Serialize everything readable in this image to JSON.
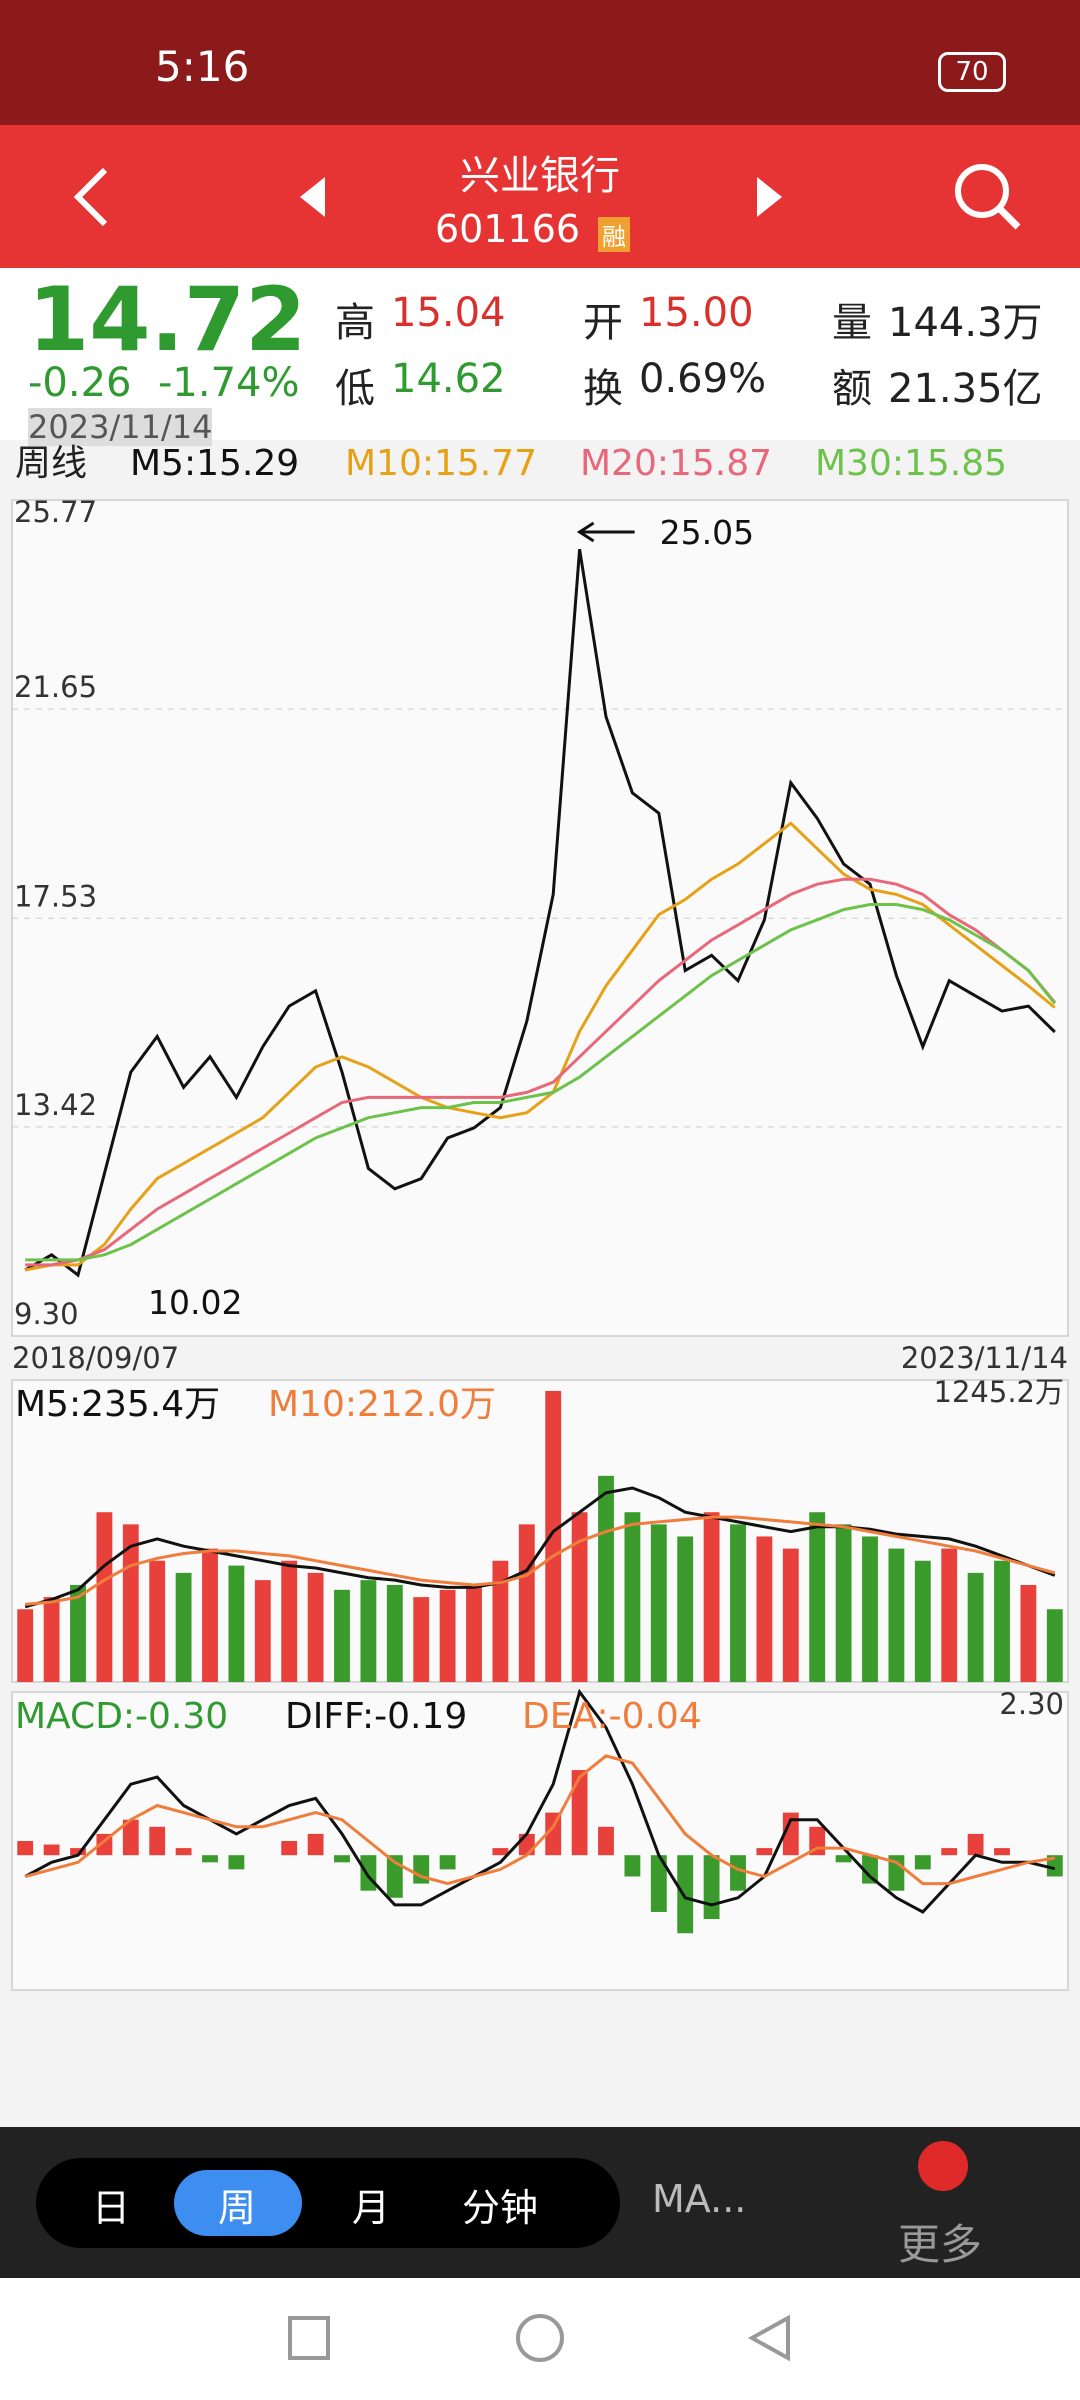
{
  "status_bar": {
    "time": "5:16",
    "battery": "70"
  },
  "header": {
    "name": "兴业银行",
    "code": "601166",
    "badge": "融"
  },
  "quote": {
    "price": "14.72",
    "change": "-0.26",
    "change_pct": "-1.74%",
    "date": "2023/11/14",
    "stats": [
      {
        "label": "高",
        "value": "15.04"
      },
      {
        "label": "开",
        "value": "15.00"
      },
      {
        "label": "量",
        "value": "144.3万"
      },
      {
        "label": "低",
        "value": "14.62"
      },
      {
        "label": "换",
        "value": "0.69%"
      },
      {
        "label": "额",
        "value": "21.35亿"
      }
    ]
  },
  "chart_data": [
    {
      "type": "line",
      "period": "周线",
      "max_label": "25.05",
      "min_label": "10.02",
      "categories": [
        "2018/09/07",
        null,
        null,
        null,
        null,
        null,
        null,
        null,
        null,
        null,
        null,
        null,
        null,
        null,
        null,
        null,
        null,
        null,
        null,
        null,
        null,
        null,
        null,
        null,
        null,
        null,
        null,
        null,
        null,
        null,
        null,
        null,
        null,
        null,
        null,
        null,
        null,
        null,
        null,
        "2023/11/14"
      ],
      "ylim": [
        9.3,
        25.77
      ],
      "yticks": [
        25.77,
        21.65,
        17.53,
        13.42,
        {
          "value": 9.3,
          "label": "9.30"
        }
      ],
      "grid": true,
      "series": [
        {
          "name": "M5:15.29",
          "color": "#111111",
          "values": [
            10.6,
            10.9,
            10.5,
            12.5,
            14.5,
            15.2,
            14.2,
            14.8,
            14.0,
            15.0,
            15.8,
            16.1,
            14.5,
            12.6,
            12.2,
            12.4,
            13.2,
            13.4,
            13.8,
            15.5,
            18.0,
            24.8,
            21.5,
            20.0,
            19.6,
            16.5,
            16.8,
            16.3,
            17.5,
            20.2,
            19.5,
            18.6,
            18.2,
            16.4,
            15.0,
            16.3,
            16.0,
            15.7,
            15.8,
            15.29
          ]
        },
        {
          "name": "M10:15.77",
          "color": "#e6a117",
          "values": [
            10.6,
            10.7,
            10.7,
            11.1,
            11.8,
            12.4,
            12.7,
            13.0,
            13.3,
            13.6,
            14.1,
            14.6,
            14.8,
            14.6,
            14.3,
            14.0,
            13.8,
            13.7,
            13.6,
            13.7,
            14.1,
            15.3,
            16.2,
            16.9,
            17.6,
            17.9,
            18.3,
            18.6,
            19.0,
            19.4,
            18.9,
            18.4,
            18.1,
            18.0,
            17.8,
            17.4,
            17.0,
            16.6,
            16.2,
            15.77
          ]
        },
        {
          "name": "M20:15.87",
          "color": "#e8687a",
          "values": [
            10.7,
            10.7,
            10.8,
            11.0,
            11.4,
            11.8,
            12.1,
            12.4,
            12.7,
            13.0,
            13.3,
            13.6,
            13.9,
            14.0,
            14.0,
            14.0,
            14.0,
            14.0,
            14.0,
            14.1,
            14.3,
            14.8,
            15.3,
            15.8,
            16.3,
            16.7,
            17.1,
            17.4,
            17.7,
            18.0,
            18.2,
            18.3,
            18.3,
            18.2,
            18.0,
            17.6,
            17.3,
            16.9,
            16.5,
            15.87
          ]
        },
        {
          "name": "M30:15.85",
          "color": "#6cc24a",
          "values": [
            10.8,
            10.8,
            10.8,
            10.9,
            11.1,
            11.4,
            11.7,
            12.0,
            12.3,
            12.6,
            12.9,
            13.2,
            13.4,
            13.6,
            13.7,
            13.8,
            13.8,
            13.9,
            13.9,
            14.0,
            14.1,
            14.4,
            14.8,
            15.2,
            15.6,
            16.0,
            16.4,
            16.7,
            17.0,
            17.3,
            17.5,
            17.7,
            17.8,
            17.8,
            17.7,
            17.5,
            17.2,
            16.9,
            16.5,
            15.85
          ]
        }
      ]
    },
    {
      "type": "bar",
      "ylim": [
        0,
        1245.2
      ],
      "yticks": [
        {
          "value": 1245.2,
          "label": "1245.2万"
        }
      ],
      "values": [
        300,
        350,
        400,
        700,
        650,
        500,
        450,
        550,
        480,
        420,
        500,
        450,
        380,
        420,
        400,
        350,
        380,
        400,
        500,
        650,
        1200,
        700,
        850,
        700,
        650,
        600,
        700,
        650,
        600,
        550,
        700,
        650,
        600,
        550,
        500,
        550,
        450,
        500,
        400,
        300
      ],
      "series": [
        {
          "name": "M5:235.4万",
          "color": "#111111",
          "values": [
            310,
            340,
            380,
            480,
            560,
            590,
            560,
            540,
            520,
            500,
            480,
            470,
            450,
            430,
            420,
            400,
            390,
            390,
            410,
            460,
            620,
            700,
            780,
            800,
            760,
            700,
            680,
            660,
            640,
            620,
            640,
            640,
            630,
            610,
            600,
            590,
            560,
            520,
            480,
            440
          ]
        },
        {
          "name": "M10:212.0万",
          "color": "#ef7d3c",
          "values": [
            320,
            330,
            350,
            420,
            480,
            510,
            530,
            540,
            540,
            530,
            520,
            500,
            480,
            460,
            440,
            420,
            410,
            400,
            410,
            440,
            520,
            580,
            620,
            650,
            660,
            670,
            680,
            680,
            670,
            660,
            650,
            640,
            620,
            600,
            580,
            560,
            540,
            510,
            480,
            450
          ]
        }
      ]
    },
    {
      "type": "bar",
      "label": "MACD:-0.30",
      "ylim": [
        -1.9,
        2.3
      ],
      "yticks": [
        {
          "value": 2.3,
          "label": "2.30"
        }
      ],
      "values": [
        0.2,
        0.15,
        0.1,
        0.3,
        0.5,
        0.4,
        0.1,
        -0.1,
        -0.2,
        0.0,
        0.2,
        0.3,
        -0.1,
        -0.5,
        -0.6,
        -0.4,
        -0.2,
        0.0,
        0.1,
        0.3,
        0.6,
        1.2,
        0.4,
        -0.3,
        -0.8,
        -1.1,
        -0.9,
        -0.5,
        0.1,
        0.6,
        0.4,
        -0.1,
        -0.4,
        -0.5,
        -0.2,
        0.1,
        0.3,
        0.1,
        0.0,
        -0.3
      ],
      "series": [
        {
          "name": "DIFF:-0.19",
          "color": "#111111",
          "values": [
            -0.3,
            -0.1,
            0.0,
            0.5,
            1.0,
            1.1,
            0.7,
            0.5,
            0.3,
            0.5,
            0.7,
            0.8,
            0.3,
            -0.3,
            -0.7,
            -0.7,
            -0.5,
            -0.3,
            -0.1,
            0.3,
            1.0,
            2.3,
            1.8,
            1.0,
            0.0,
            -0.6,
            -0.7,
            -0.6,
            -0.3,
            0.5,
            0.5,
            0.1,
            -0.3,
            -0.6,
            -0.8,
            -0.4,
            0.0,
            -0.1,
            -0.1,
            -0.19
          ]
        },
        {
          "name": "DEA:-0.04",
          "color": "#ef7d3c",
          "values": [
            -0.3,
            -0.2,
            -0.1,
            0.2,
            0.5,
            0.7,
            0.6,
            0.5,
            0.4,
            0.4,
            0.5,
            0.6,
            0.5,
            0.2,
            -0.1,
            -0.3,
            -0.4,
            -0.3,
            -0.2,
            0.0,
            0.4,
            1.1,
            1.4,
            1.3,
            0.8,
            0.3,
            0.0,
            -0.2,
            -0.3,
            -0.1,
            0.1,
            0.1,
            0.0,
            -0.1,
            -0.4,
            -0.4,
            -0.3,
            -0.2,
            -0.1,
            -0.04
          ]
        }
      ]
    }
  ],
  "toolbar": {
    "tabs": [
      "日",
      "周",
      "月",
      "分钟"
    ],
    "ma": "MA...",
    "more": "更多"
  }
}
